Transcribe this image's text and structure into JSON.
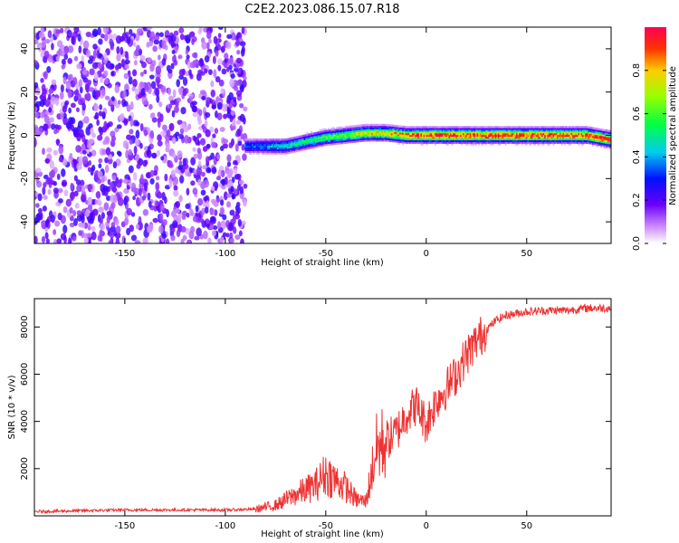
{
  "title": "C2E2.2023.086.15.07.R18",
  "colors": {
    "line": "#ee3333",
    "axis": "#000000",
    "background": "#ffffff",
    "scatter_low": "#7a00ff"
  },
  "colorbar": {
    "label": "Normalized spectral amplitude",
    "ticks": [
      "0.0",
      "0.2",
      "0.4",
      "0.6",
      "0.8"
    ],
    "tick_values": [
      0.0,
      0.2,
      0.4,
      0.6,
      0.8
    ],
    "range": [
      0,
      1
    ],
    "colormap": "rainbow"
  },
  "chart_data": [
    {
      "type": "heatmap",
      "xlabel": "Height of straight line (km)",
      "ylabel": "Frequency (Hz)",
      "xlim": [
        -195,
        92
      ],
      "ylim": [
        -50,
        50
      ],
      "x_ticks": [
        -150,
        -100,
        -50,
        0,
        50
      ],
      "y_ticks": [
        -40,
        -20,
        0,
        20,
        40
      ],
      "description_points": {
        "noise_region_x": [
          -195,
          -90
        ],
        "signal_center_x": [
          -90,
          -70,
          -60,
          -50,
          -40,
          -30,
          -20,
          -10,
          0,
          10,
          20,
          40,
          60,
          80,
          92
        ],
        "signal_center_freq": [
          -5,
          -5,
          -3,
          -1,
          0,
          1,
          1,
          0,
          0,
          0,
          0,
          0,
          0,
          0,
          -2
        ]
      }
    },
    {
      "type": "line",
      "xlabel": "Height of straight line (km)",
      "ylabel": "SNR (10 * v/v)",
      "xlim": [
        -195,
        92
      ],
      "ylim": [
        0,
        9200
      ],
      "x_ticks": [
        -150,
        -100,
        -50,
        0,
        50
      ],
      "y_ticks": [
        2000,
        4000,
        6000,
        8000
      ],
      "x": [
        -195,
        -150,
        -100,
        -85,
        -75,
        -65,
        -55,
        -50,
        -45,
        -40,
        -35,
        -30,
        -25,
        -20,
        -15,
        -10,
        -5,
        0,
        5,
        10,
        15,
        20,
        25,
        30,
        35,
        40,
        50,
        60,
        70,
        80,
        92
      ],
      "y": [
        180,
        250,
        250,
        280,
        450,
        900,
        1300,
        1800,
        1500,
        1200,
        700,
        600,
        2800,
        3200,
        3500,
        4300,
        4700,
        3900,
        4900,
        5400,
        6000,
        6800,
        7400,
        7900,
        8300,
        8500,
        8650,
        8700,
        8700,
        8800,
        8800
      ]
    }
  ]
}
